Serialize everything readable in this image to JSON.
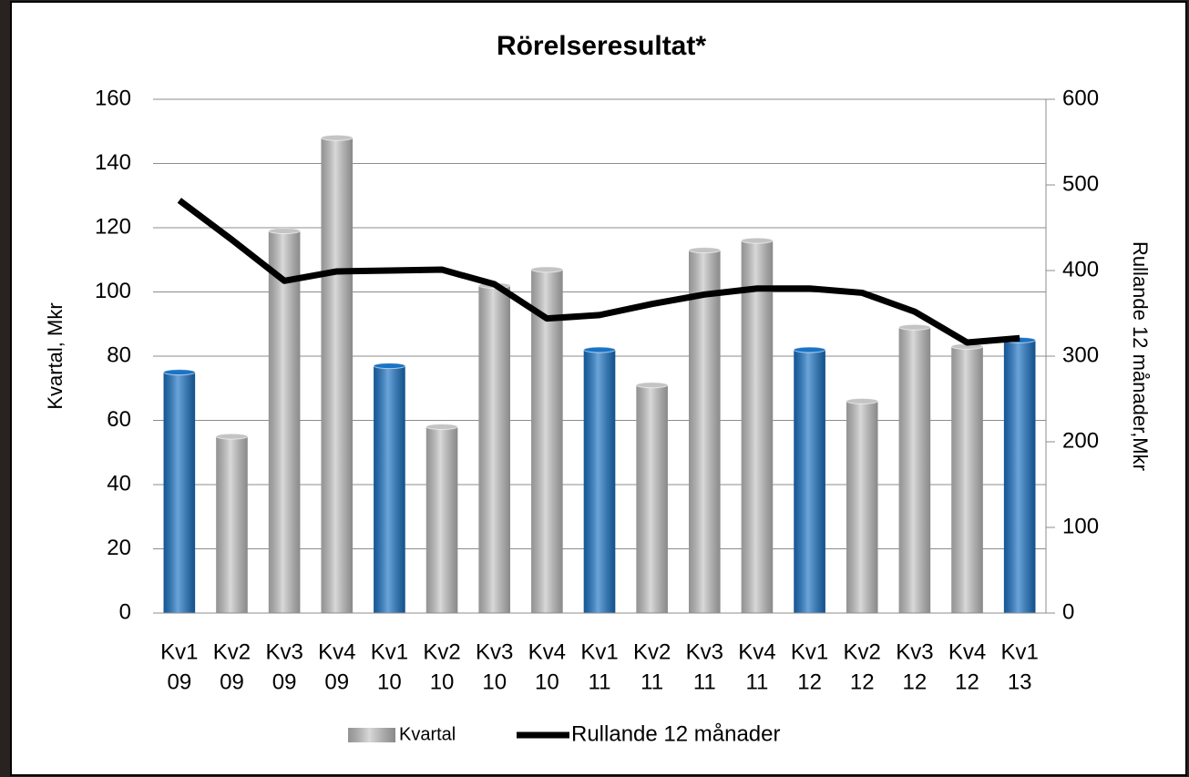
{
  "chart_data": {
    "type": "bar_line",
    "title": "Rörelseresultat*",
    "y_label": "Kvartal, Mkr",
    "y2_label": "Rullande 12 månader,Mkr",
    "categories": [
      [
        "Kv1",
        "09"
      ],
      [
        "Kv2",
        "09"
      ],
      [
        "Kv3",
        "09"
      ],
      [
        "Kv4",
        "09"
      ],
      [
        "Kv1",
        "10"
      ],
      [
        "Kv2",
        "10"
      ],
      [
        "Kv3",
        "10"
      ],
      [
        "Kv4",
        "10"
      ],
      [
        "Kv1",
        "11"
      ],
      [
        "Kv2",
        "11"
      ],
      [
        "Kv3",
        "11"
      ],
      [
        "Kv4",
        "11"
      ],
      [
        "Kv1",
        "12"
      ],
      [
        "Kv2",
        "12"
      ],
      [
        "Kv3",
        "12"
      ],
      [
        "Kv4",
        "12"
      ],
      [
        "Kv1",
        "13"
      ]
    ],
    "series": [
      {
        "name": "Kvartal",
        "type": "bar",
        "color": "#c4c4c4",
        "colors": [
          "#1a73c6",
          "#c4c4c4",
          "#c4c4c4",
          "#c4c4c4",
          "#1a73c6",
          "#c4c4c4",
          "#c4c4c4",
          "#c4c4c4",
          "#1a73c6",
          "#c4c4c4",
          "#c4c4c4",
          "#c4c4c4",
          "#1a73c6",
          "#c4c4c4",
          "#c4c4c4",
          "#c4c4c4",
          "#1a73c6"
        ],
        "values": [
          75,
          55,
          119,
          148,
          77,
          58,
          102,
          107,
          82,
          71,
          113,
          116,
          82,
          66,
          89,
          83,
          85
        ]
      },
      {
        "name": "Rullande 12 månader",
        "type": "line",
        "axis": "y2",
        "color": "#000000",
        "values": [
          482,
          436,
          388,
          399,
          400,
          401,
          384,
          344,
          348,
          361,
          372,
          379,
          379,
          374,
          352,
          316,
          321
        ]
      }
    ],
    "ylim": [
      0,
      160
    ],
    "yticks": [
      0,
      20,
      40,
      60,
      80,
      100,
      120,
      140,
      160
    ],
    "y2lim": [
      0,
      600
    ],
    "y2ticks": [
      0,
      100,
      200,
      300,
      400,
      500,
      600
    ],
    "grid": true,
    "legend": "bottom"
  }
}
